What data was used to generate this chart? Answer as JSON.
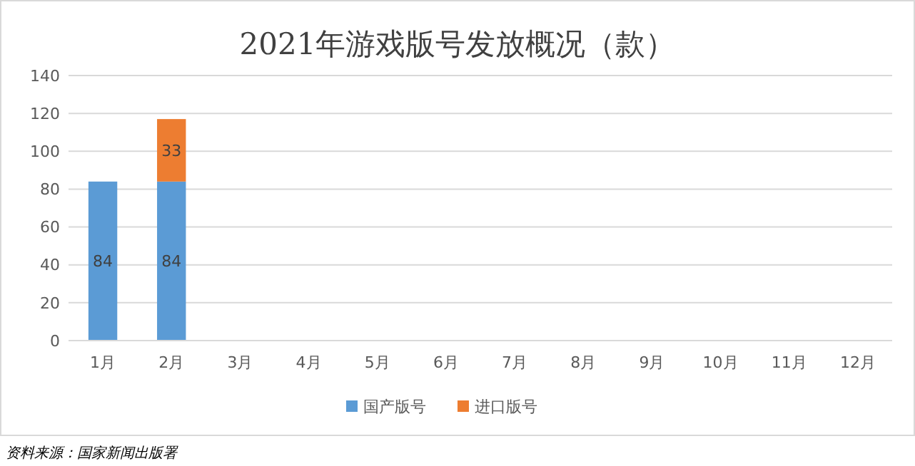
{
  "chart_data": {
    "type": "bar",
    "title": "2021年游戏版号发放概况（款）",
    "categories": [
      "1月",
      "2月",
      "3月",
      "4月",
      "5月",
      "6月",
      "7月",
      "8月",
      "9月",
      "10月",
      "11月",
      "12月"
    ],
    "series": [
      {
        "name": "国产版号",
        "color": "#5b9bd5",
        "values": [
          84,
          84,
          null,
          null,
          null,
          null,
          null,
          null,
          null,
          null,
          null,
          null
        ]
      },
      {
        "name": "进口版号",
        "color": "#ed7d31",
        "values": [
          null,
          33,
          null,
          null,
          null,
          null,
          null,
          null,
          null,
          null,
          null,
          null
        ]
      }
    ],
    "stacked": true,
    "data_labels": true,
    "ylim": [
      0,
      140
    ],
    "yticks": [
      0,
      20,
      40,
      60,
      80,
      100,
      120,
      140
    ],
    "grid": "y",
    "legend": "bottom",
    "annotations": [
      "资料来源：国家新闻出版署"
    ]
  }
}
